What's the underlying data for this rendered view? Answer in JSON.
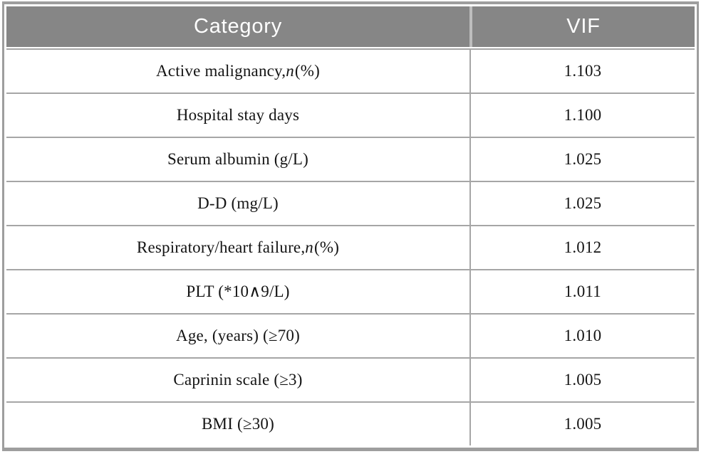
{
  "table": {
    "columns": [
      {
        "label": "Category"
      },
      {
        "label": "VIF"
      }
    ],
    "rows": [
      {
        "category": "Active malignancy, n (%)",
        "vif": "1.103"
      },
      {
        "category": "Hospital stay days",
        "vif": "1.100"
      },
      {
        "category": "Serum albumin (g/L)",
        "vif": "1.025"
      },
      {
        "category": "D-D (mg/L)",
        "vif": "1.025"
      },
      {
        "category": "Respiratory/heart failure, n (%)",
        "vif": "1.012"
      },
      {
        "category": "PLT (*10∧9/L)",
        "vif": "1.011"
      },
      {
        "category": "Age, (years) (≥70)",
        "vif": "1.010"
      },
      {
        "category": "Caprinin scale (≥3)",
        "vif": "1.005"
      },
      {
        "category": "BMI (≥30)",
        "vif": "1.005"
      }
    ],
    "colors": {
      "header_bg": "#868686",
      "header_text": "#ffffff",
      "outer_border": "#9e9e9e",
      "row_divider": "#a6a6a6",
      "body_text": "#141414"
    }
  },
  "chart_data": {
    "type": "table",
    "title": "",
    "columns": [
      "Category",
      "VIF"
    ],
    "rows": [
      [
        "Active malignancy, n (%)",
        1.103
      ],
      [
        "Hospital stay days",
        1.1
      ],
      [
        "Serum albumin (g/L)",
        1.025
      ],
      [
        "D-D (mg/L)",
        1.025
      ],
      [
        "Respiratory/heart failure, n (%)",
        1.012
      ],
      [
        "PLT (*10∧9/L)",
        1.011
      ],
      [
        "Age, (years) (≥70)",
        1.01
      ],
      [
        "Caprinin scale (≥3)",
        1.005
      ],
      [
        "BMI (≥30)",
        1.005
      ]
    ]
  }
}
